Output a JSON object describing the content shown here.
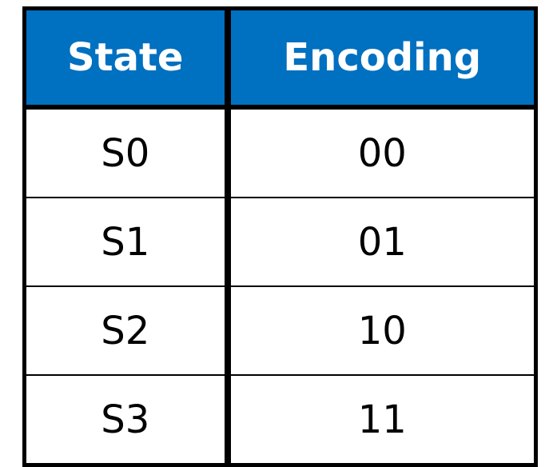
{
  "table": {
    "headers": {
      "state": "State",
      "encoding": "Encoding"
    },
    "rows": [
      {
        "state": "S0",
        "encoding": "00"
      },
      {
        "state": "S1",
        "encoding": "01"
      },
      {
        "state": "S2",
        "encoding": "10"
      },
      {
        "state": "S3",
        "encoding": "11"
      }
    ],
    "colors": {
      "header_background": "#0070c0",
      "header_text": "#ffffff",
      "border": "#000000"
    }
  }
}
